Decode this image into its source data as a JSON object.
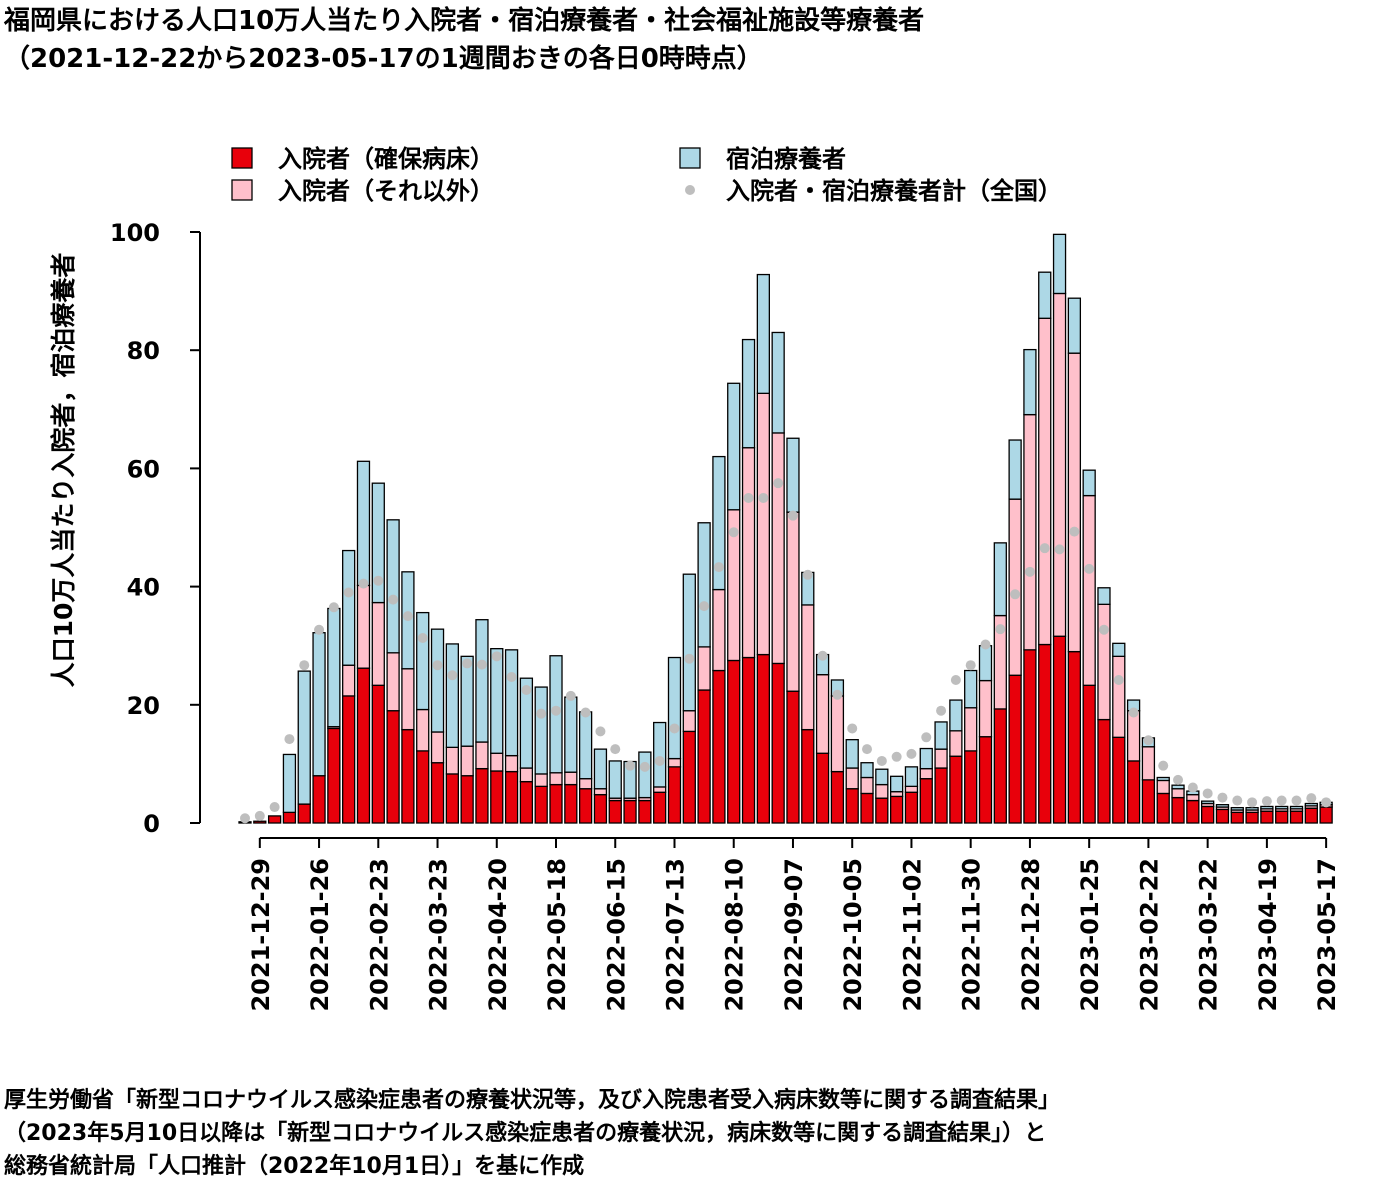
{
  "title": {
    "line1": "福岡県における人口10万人当たり入院者・宿泊療養者・社会福祉施設等療養者",
    "line2": "（2021-12-22から2023-05-17の1週間おきの各日0時時点）"
  },
  "footer": {
    "line1": "厚生労働省「新型コロナウイルス感染症患者の療養状況等，及び入院患者受入病床数等に関する調査結果」",
    "line2": "（2023年5月10日以降は「新型コロナウイルス感染症患者の療養状況，病床数等に関する調査結果」）と",
    "line3": "総務省統計局「人口推計（2022年10月1日）」を基に作成"
  },
  "colors": {
    "secured_beds": "#e8000b",
    "other_inpatients": "#ffc0cb",
    "hotel": "#add8e6",
    "national_total": "#bebebe"
  },
  "chart_data": {
    "type": "bar",
    "stacked": true,
    "ylabel": "人口10万人当たり入院者，宿泊療養者",
    "ylim": [
      0,
      100
    ],
    "yticks": [
      0,
      20,
      40,
      60,
      80,
      100
    ],
    "legend": [
      {
        "key": "secured_beds",
        "label": "入院者（確保病床）"
      },
      {
        "key": "hotel",
        "label": "宿泊療養者"
      },
      {
        "key": "other_inpatients",
        "label": "入院者（それ以外）"
      },
      {
        "key": "national_total",
        "label": "入院者・宿泊療養者計（全国）"
      }
    ],
    "xtick_labels": [
      "2021-12-29",
      "2022-01-26",
      "2022-02-23",
      "2022-03-23",
      "2022-04-20",
      "2022-05-18",
      "2022-06-15",
      "2022-07-13",
      "2022-08-10",
      "2022-09-07",
      "2022-10-05",
      "2022-11-02",
      "2022-11-30",
      "2022-12-28",
      "2023-01-25",
      "2023-02-22",
      "2023-03-22",
      "2023-04-19",
      "2023-05-17"
    ],
    "dates": [
      "2021-12-22",
      "2021-12-29",
      "2022-01-05",
      "2022-01-12",
      "2022-01-19",
      "2022-01-26",
      "2022-02-02",
      "2022-02-09",
      "2022-02-16",
      "2022-02-23",
      "2022-03-02",
      "2022-03-09",
      "2022-03-16",
      "2022-03-23",
      "2022-03-30",
      "2022-04-06",
      "2022-04-13",
      "2022-04-20",
      "2022-04-27",
      "2022-05-04",
      "2022-05-11",
      "2022-05-18",
      "2022-05-25",
      "2022-06-01",
      "2022-06-08",
      "2022-06-15",
      "2022-06-22",
      "2022-06-29",
      "2022-07-06",
      "2022-07-13",
      "2022-07-20",
      "2022-07-27",
      "2022-08-03",
      "2022-08-10",
      "2022-08-17",
      "2022-08-24",
      "2022-08-31",
      "2022-09-07",
      "2022-09-14",
      "2022-09-21",
      "2022-09-28",
      "2022-10-05",
      "2022-10-12",
      "2022-10-19",
      "2022-10-26",
      "2022-11-02",
      "2022-11-09",
      "2022-11-16",
      "2022-11-23",
      "2022-11-30",
      "2022-12-07",
      "2022-12-14",
      "2022-12-21",
      "2022-12-28",
      "2023-01-04",
      "2023-01-11",
      "2023-01-18",
      "2023-01-25",
      "2023-02-01",
      "2023-02-08",
      "2023-02-15",
      "2023-02-22",
      "2023-03-01",
      "2023-03-08",
      "2023-03-15",
      "2023-03-22",
      "2023-03-29",
      "2023-04-05",
      "2023-04-12",
      "2023-04-19",
      "2023-04-26",
      "2023-05-03",
      "2023-05-10",
      "2023-05-17"
    ],
    "series": [
      {
        "key": "secured_beds",
        "name": "入院者（確保病床）",
        "values": [
          0.2,
          0.3,
          1.2,
          1.8,
          3.2,
          8.0,
          16.0,
          21.5,
          26.2,
          23.3,
          19.0,
          15.8,
          12.2,
          10.2,
          8.3,
          8.0,
          9.2,
          8.8,
          8.7,
          7.0,
          6.2,
          6.5,
          6.5,
          5.8,
          4.8,
          3.8,
          3.8,
          3.8,
          5.2,
          9.5,
          15.5,
          22.5,
          25.8,
          27.5,
          28.0,
          28.5,
          27.0,
          22.3,
          15.8,
          11.8,
          8.7,
          5.8,
          5.0,
          4.2,
          4.5,
          5.2,
          7.5,
          9.3,
          11.3,
          12.2,
          14.6,
          19.3,
          25.0,
          29.3,
          30.2,
          31.6,
          29.0,
          23.3,
          17.5,
          14.5,
          10.5,
          7.3,
          5.0,
          4.3,
          3.8,
          2.8,
          2.3,
          1.8,
          1.8,
          2.0,
          2.0,
          2.0,
          2.5,
          2.7
        ]
      },
      {
        "key": "other_inpatients",
        "name": "入院者（それ以外）",
        "values": [
          0.0,
          0.0,
          0.0,
          0.0,
          0.0,
          0.0,
          0.3,
          5.2,
          14.0,
          14.0,
          9.8,
          10.3,
          7.0,
          5.2,
          4.5,
          5.0,
          4.5,
          3.0,
          2.7,
          2.3,
          2.1,
          2.0,
          2.1,
          1.7,
          1.0,
          0.4,
          0.4,
          0.5,
          0.9,
          1.4,
          3.5,
          7.3,
          13.7,
          25.5,
          35.5,
          44.2,
          39.0,
          30.3,
          21.1,
          13.3,
          12.8,
          3.5,
          2.7,
          2.3,
          0.8,
          1.0,
          1.7,
          3.2,
          4.3,
          7.3,
          9.5,
          15.8,
          29.8,
          39.8,
          55.2,
          58.0,
          50.5,
          32.1,
          19.5,
          13.7,
          8.5,
          5.6,
          2.2,
          1.5,
          1.0,
          0.5,
          0.4,
          0.4,
          0.4,
          0.4,
          0.4,
          0.4,
          0.4,
          0.4
        ]
      },
      {
        "key": "hotel",
        "name": "宿泊療養者",
        "values": [
          0.0,
          0.0,
          0.0,
          9.8,
          22.5,
          24.2,
          20.0,
          19.4,
          21.0,
          20.2,
          22.5,
          16.4,
          16.4,
          17.4,
          17.5,
          15.2,
          20.7,
          17.7,
          17.9,
          15.2,
          14.7,
          19.8,
          12.7,
          11.3,
          6.7,
          6.3,
          6.2,
          7.7,
          10.9,
          17.1,
          23.1,
          21.0,
          22.5,
          21.4,
          18.3,
          20.1,
          17.0,
          12.5,
          5.5,
          3.4,
          2.7,
          4.8,
          2.5,
          2.6,
          2.6,
          3.3,
          3.4,
          4.6,
          5.2,
          6.3,
          5.9,
          12.3,
          10.0,
          11.0,
          7.8,
          10.0,
          9.3,
          4.3,
          2.8,
          2.2,
          1.8,
          1.5,
          0.5,
          0.6,
          0.6,
          0.4,
          0.4,
          0.4,
          0.4,
          0.4,
          0.4,
          0.4,
          0.4,
          0.4
        ]
      },
      {
        "key": "national_total",
        "name": "入院者・宿泊療養者計（全国）",
        "type": "scatter",
        "values": [
          0.8,
          1.2,
          2.7,
          14.2,
          26.7,
          32.7,
          36.5,
          39.0,
          40.5,
          41.0,
          37.8,
          35.0,
          31.3,
          26.7,
          25.0,
          27.0,
          26.8,
          28.2,
          24.7,
          22.5,
          18.5,
          19.0,
          21.5,
          18.7,
          15.5,
          12.5,
          9.7,
          9.5,
          10.5,
          16.0,
          27.8,
          36.7,
          43.3,
          49.2,
          55.0,
          55.0,
          57.5,
          52.0,
          42.0,
          28.3,
          21.7,
          16.0,
          12.5,
          10.5,
          11.2,
          11.7,
          14.5,
          19.0,
          24.2,
          26.7,
          30.2,
          32.8,
          38.7,
          42.5,
          46.5,
          46.3,
          49.3,
          43.0,
          32.7,
          24.2,
          18.7,
          14.0,
          9.7,
          7.3,
          6.0,
          5.0,
          4.3,
          3.8,
          3.5,
          3.7,
          3.8,
          3.8,
          4.2,
          3.5
        ]
      }
    ]
  }
}
